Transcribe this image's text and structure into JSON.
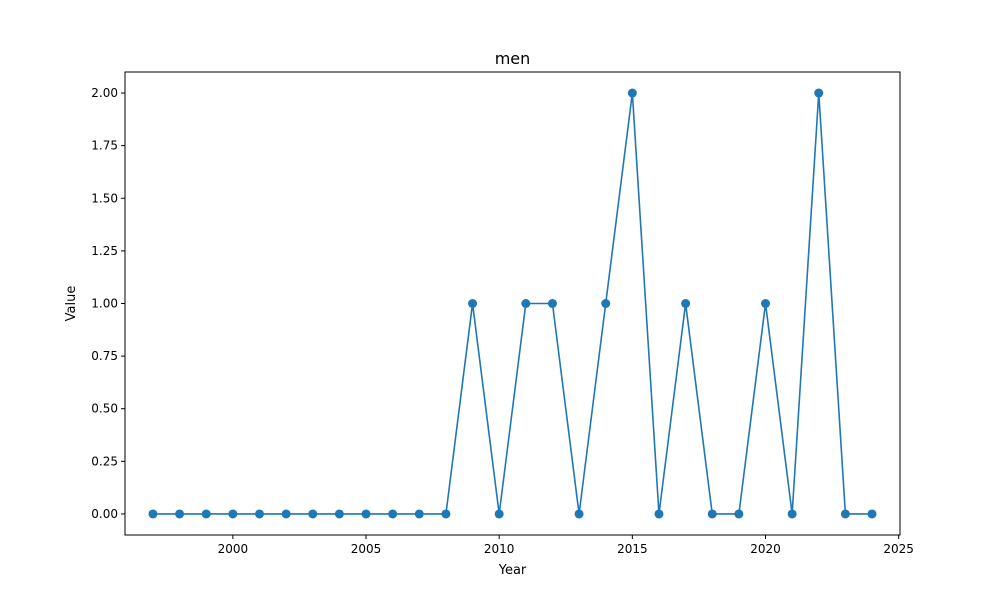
{
  "chart_data": {
    "type": "line",
    "title": "men",
    "xlabel": "Year",
    "ylabel": "Value",
    "xlim": [
      1995.95,
      2025.05
    ],
    "ylim": [
      -0.1,
      2.1
    ],
    "xticks": [
      2000,
      2005,
      2010,
      2015,
      2020,
      2025
    ],
    "xtick_labels": [
      "2000",
      "2005",
      "2010",
      "2015",
      "2020",
      "2025"
    ],
    "yticks": [
      0,
      0.25,
      0.5,
      0.75,
      1,
      1.25,
      1.5,
      1.75,
      2
    ],
    "ytick_labels": [
      "0.00",
      "0.25",
      "0.50",
      "0.75",
      "1.00",
      "1.25",
      "1.50",
      "1.75",
      "2.00"
    ],
    "grid": false,
    "series": [
      {
        "color": "#1f77b4",
        "marker": "circle",
        "x": [
          1997,
          1998,
          1999,
          2000,
          2001,
          2002,
          2003,
          2004,
          2005,
          2006,
          2007,
          2008,
          2009,
          2010,
          2011,
          2012,
          2013,
          2014,
          2015,
          2016,
          2017,
          2018,
          2019,
          2020,
          2021,
          2022,
          2023,
          2024
        ],
        "y": [
          0,
          0,
          0,
          0,
          0,
          0,
          0,
          0,
          0,
          0,
          0,
          0,
          1,
          0,
          1,
          1,
          0,
          1,
          2,
          0,
          1,
          0,
          0,
          1,
          0,
          2,
          0,
          0
        ]
      }
    ]
  }
}
